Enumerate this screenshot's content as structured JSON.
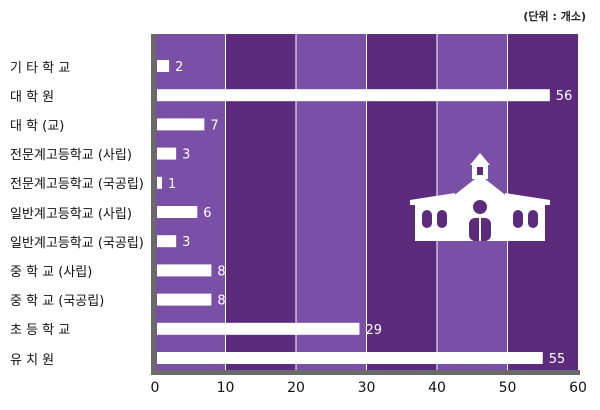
{
  "unit_label": "(단위 : 개소)",
  "chart_data": {
    "type": "bar",
    "orientation": "horizontal",
    "categories": [
      "기 타 학 교",
      "대 학 원",
      "대 학 (교)",
      "전문계고등학교 (사립)",
      "전문계고등학교 (국공립)",
      "일반계고등학교 (사립)",
      "일반계고등학교 (국공립)",
      "중 학 교 (사립)",
      "중 학 교 (국공립)",
      "초 등 학 교",
      "유 치 원"
    ],
    "values": [
      2,
      56,
      7,
      3,
      1,
      6,
      3,
      8,
      8,
      29,
      55
    ],
    "xlim": [
      0,
      60
    ],
    "xticks": [
      0,
      10,
      20,
      30,
      40,
      50,
      60
    ],
    "colors": {
      "band_light": "#7a4fa6",
      "band_dark": "#5c2b7c",
      "bar": "#ffffff",
      "axis": "#6a6a6a"
    }
  },
  "icon": "school-building-icon"
}
